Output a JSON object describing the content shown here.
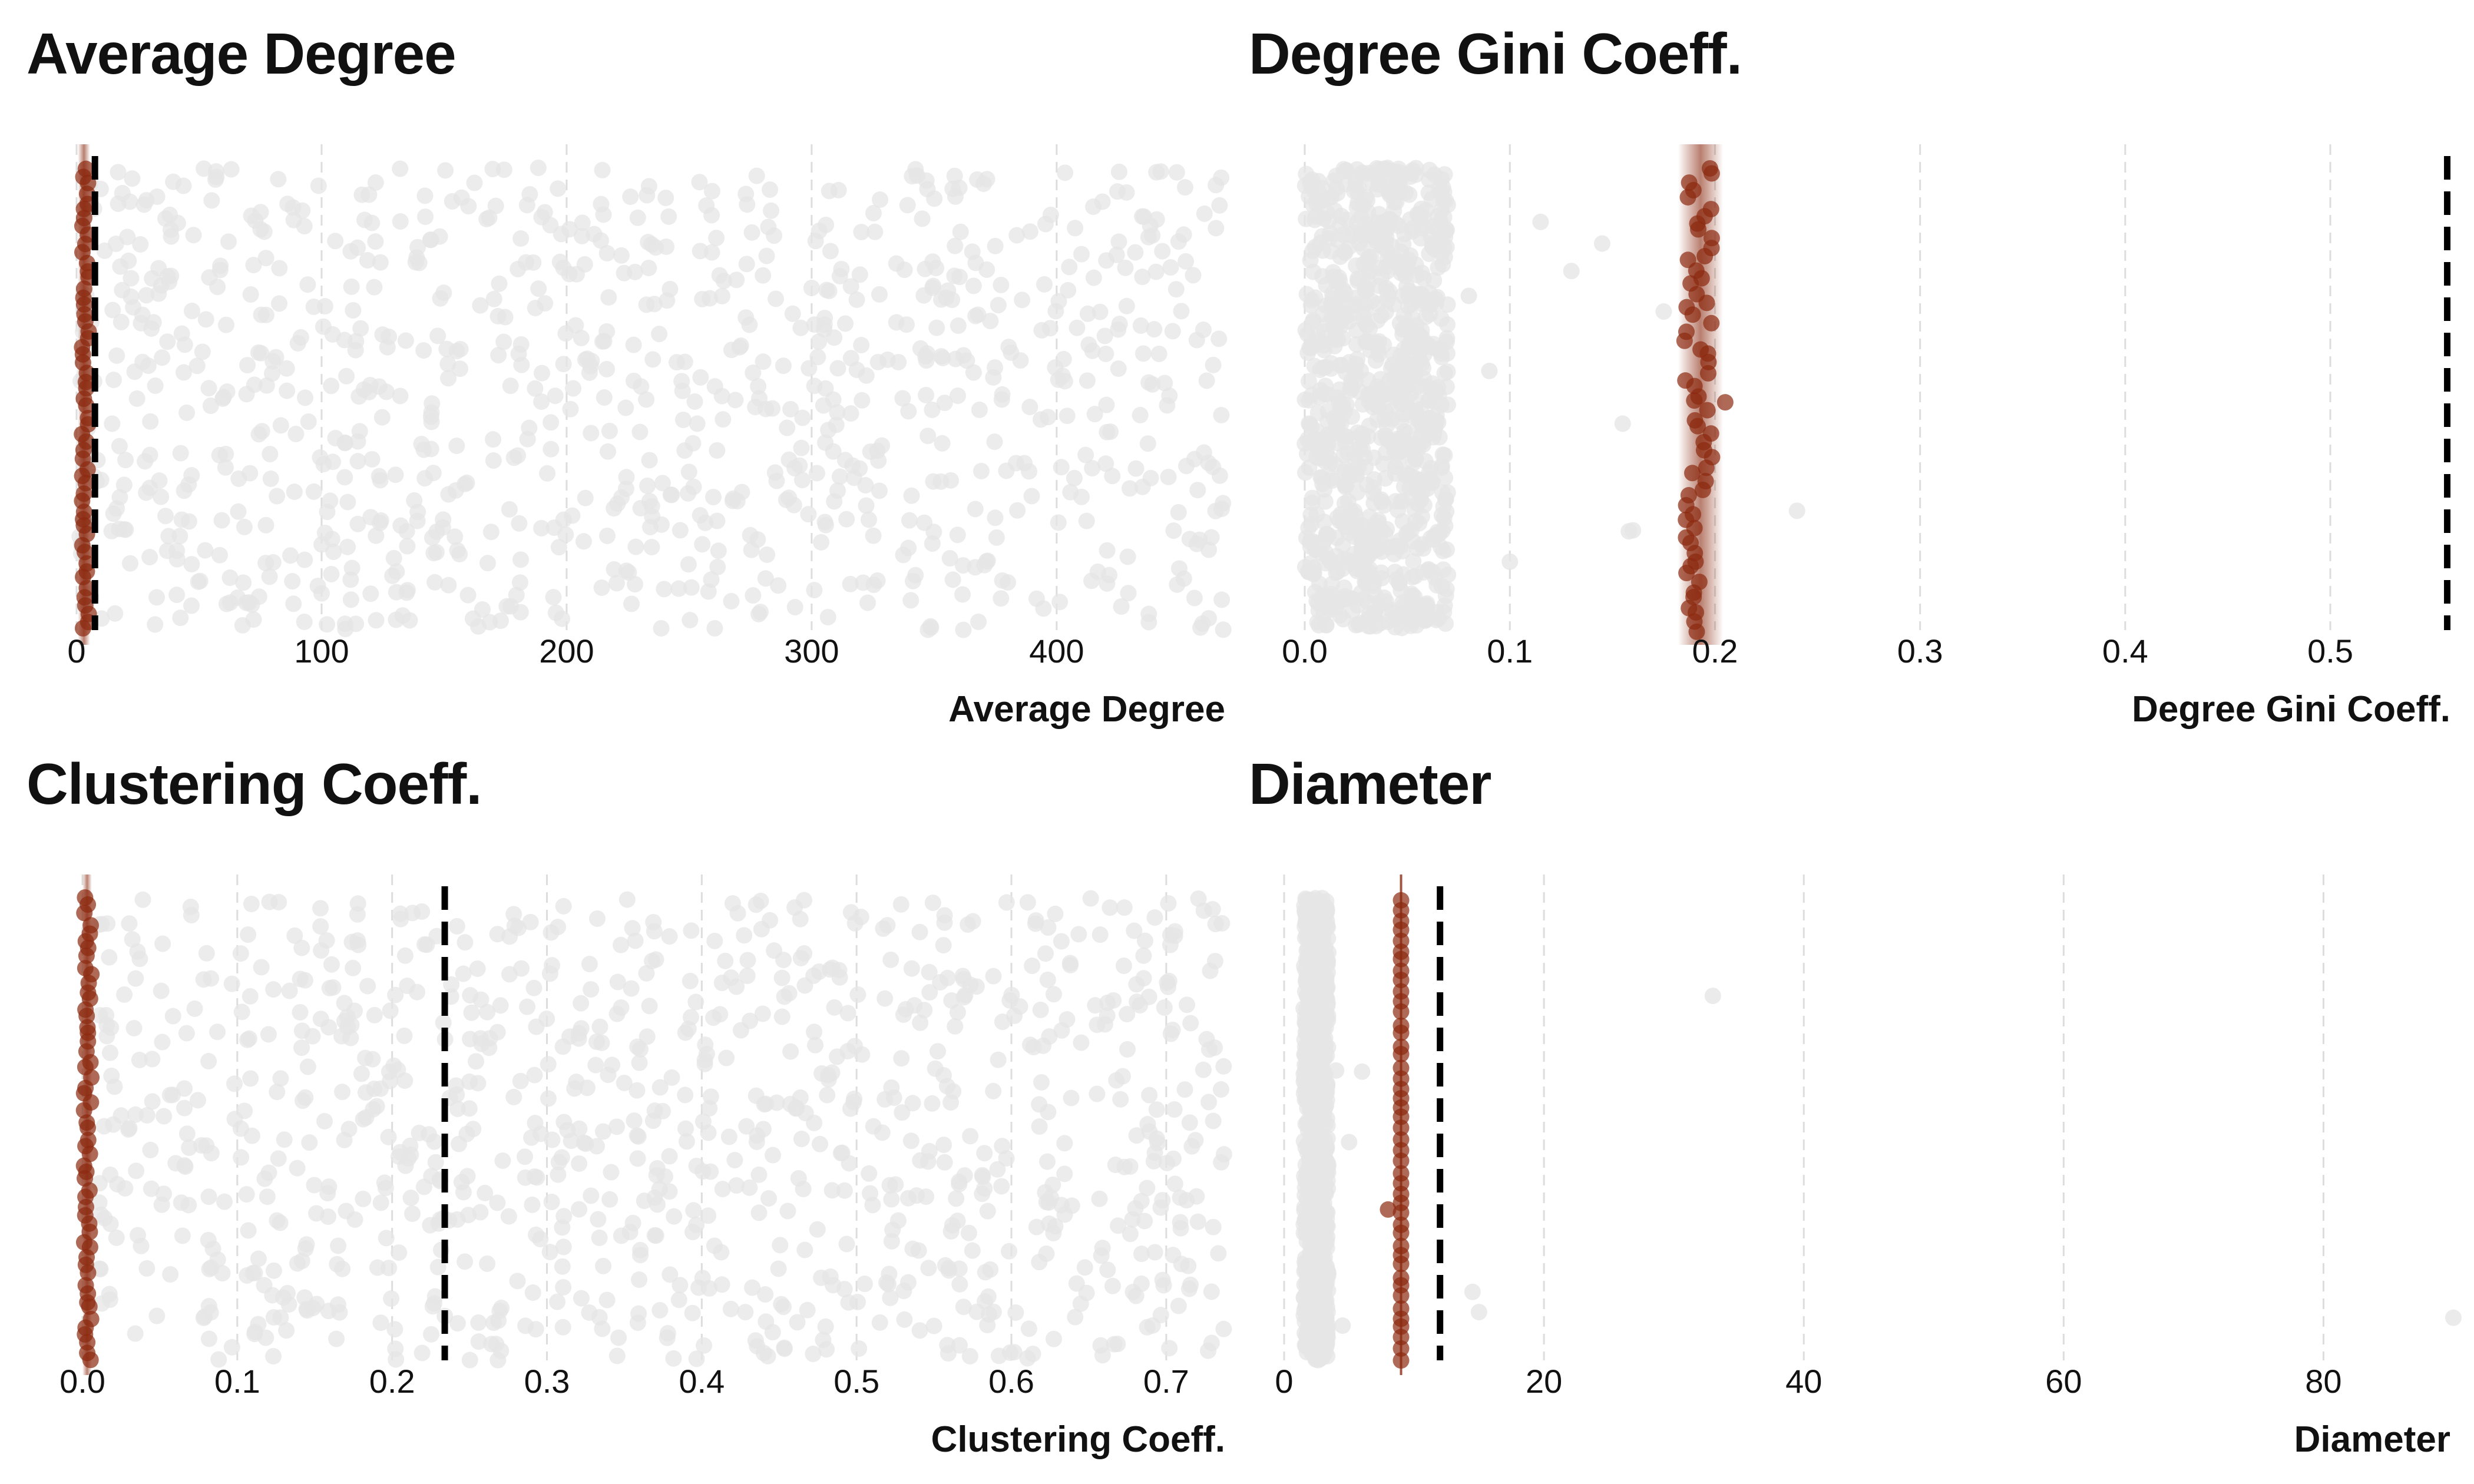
{
  "chart_data": [
    {
      "type": "scatter",
      "title": "Average Degree",
      "xlabel": "Average Degree",
      "xlim": [
        0,
        470
      ],
      "xticks": [
        0,
        100,
        200,
        300,
        400
      ],
      "tick_labels": [
        "0",
        "100",
        "200",
        "300",
        "400"
      ],
      "grid": true,
      "reference_line": 7.5,
      "band": {
        "center": 3,
        "half_width": 2.5
      },
      "series": [
        {
          "role": "background",
          "color": "#e6e6e6",
          "count": 950,
          "min": 1,
          "max": 468
        },
        {
          "role": "highlight",
          "color": "#8b2a10",
          "count": 55,
          "min": 2,
          "max": 5
        }
      ]
    },
    {
      "type": "scatter",
      "title": "Degree Gini Coeff.",
      "xlabel": "Degree Gini Coeff.",
      "xlim": [
        0,
        0.56
      ],
      "xticks": [
        0.0,
        0.1,
        0.2,
        0.3,
        0.4,
        0.5
      ],
      "tick_labels": [
        "0.0",
        "0.1",
        "0.2",
        "0.3",
        "0.4",
        "0.5"
      ],
      "grid": true,
      "reference_line": 0.557,
      "band": {
        "center": 0.193,
        "half_width": 0.011
      },
      "series": [
        {
          "role": "background",
          "color": "#e6e6e6",
          "count": 900,
          "min": 0.0,
          "max": 0.07
        },
        {
          "role": "background-tail",
          "color": "#e6e6e6",
          "points": [
            0.08,
            0.09,
            0.1,
            0.115,
            0.13,
            0.145,
            0.155,
            0.158,
            0.16,
            0.175,
            0.24
          ]
        },
        {
          "role": "highlight",
          "color": "#8b2a10",
          "count": 60,
          "min": 0.185,
          "max": 0.2
        },
        {
          "role": "highlight-extra",
          "color": "#8b2a10",
          "points": [
            0.205
          ]
        }
      ]
    },
    {
      "type": "scatter",
      "title": "Clustering Coeff.",
      "xlabel": "Clustering Coeff.",
      "xlim": [
        0,
        0.74
      ],
      "xticks": [
        0.0,
        0.1,
        0.2,
        0.3,
        0.4,
        0.5,
        0.6,
        0.7
      ],
      "tick_labels": [
        "0.0",
        "0.1",
        "0.2",
        "0.3",
        "0.4",
        "0.5",
        "0.6",
        "0.7"
      ],
      "grid": true,
      "reference_line": 0.234,
      "band": {
        "center": 0.003,
        "half_width": 0.003
      },
      "series": [
        {
          "role": "background",
          "color": "#e6e6e6",
          "count": 950,
          "min": 0.01,
          "max": 0.74
        },
        {
          "role": "highlight",
          "color": "#8b2a10",
          "count": 55,
          "min": 0.001,
          "max": 0.006
        }
      ]
    },
    {
      "type": "scatter",
      "title": "Diameter",
      "xlabel": "Diameter",
      "xlim": [
        0,
        90
      ],
      "xticks": [
        0,
        20,
        40,
        60,
        80
      ],
      "tick_labels": [
        "0",
        "20",
        "40",
        "60",
        "80"
      ],
      "grid": true,
      "reference_line": 12,
      "band": {
        "center": 9,
        "half_width": 0
      },
      "series": [
        {
          "role": "background",
          "color": "#e6e6e6",
          "count": 800,
          "min": 1.5,
          "max": 3.4
        },
        {
          "role": "background-tail",
          "color": "#e6e6e6",
          "points": [
            4,
            4.5,
            5,
            6,
            14.5,
            15,
            33,
            90
          ]
        },
        {
          "role": "highlight",
          "color": "#8b2a10",
          "count": 45,
          "min": 9,
          "max": 9
        },
        {
          "role": "highlight-extra",
          "color": "#8b2a10",
          "points": [
            8
          ]
        }
      ]
    }
  ]
}
